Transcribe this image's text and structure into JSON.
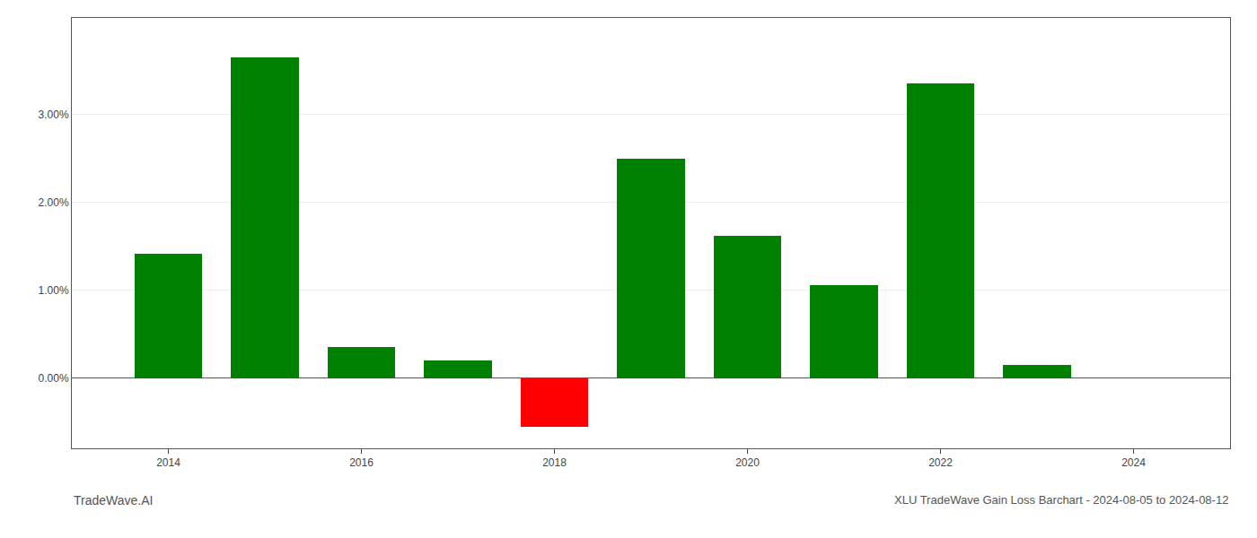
{
  "chart_data": {
    "type": "bar",
    "title": "XLU TradeWave Gain Loss Barchart - 2024-08-05 to 2024-08-12",
    "annotations": [
      "TradeWave.AI"
    ],
    "x": [
      2014,
      2015,
      2016,
      2017,
      2018,
      2019,
      2020,
      2021,
      2022,
      2023
    ],
    "values": [
      1.42,
      3.65,
      0.35,
      0.2,
      -0.55,
      2.5,
      1.62,
      1.06,
      3.35,
      0.15
    ],
    "colors": [
      "#008000",
      "#008000",
      "#008000",
      "#008000",
      "#ff0000",
      "#008000",
      "#008000",
      "#008000",
      "#008000",
      "#008000"
    ],
    "xlim": [
      2013.0,
      2025.0
    ],
    "ylim": [
      -0.8,
      4.1
    ],
    "xticks": [
      2014,
      2016,
      2018,
      2020,
      2022,
      2024
    ],
    "yticks": [
      {
        "value": 0.0,
        "label": "0.00%"
      },
      {
        "value": 1.0,
        "label": "1.00%"
      },
      {
        "value": 2.0,
        "label": "2.00%"
      },
      {
        "value": 3.0,
        "label": "3.00%"
      }
    ],
    "grid": true
  }
}
